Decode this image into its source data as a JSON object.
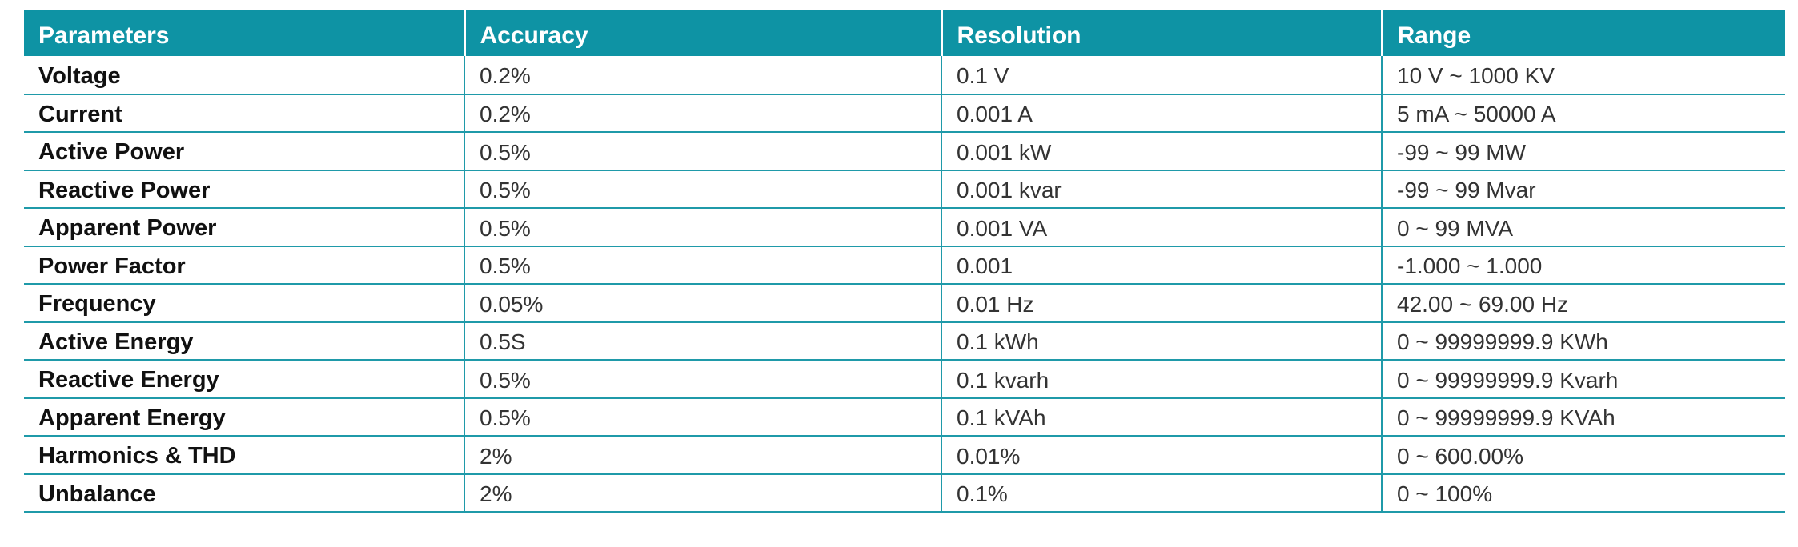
{
  "table": {
    "headers": [
      "Parameters",
      "Accuracy",
      "Resolution",
      "Range"
    ],
    "rows": [
      {
        "parameter": "Voltage",
        "accuracy": "0.2%",
        "resolution": "0.1 V",
        "range": "10 V ~ 1000 KV"
      },
      {
        "parameter": "Current",
        "accuracy": "0.2%",
        "resolution": "0.001 A",
        "range": "5 mA ~ 50000 A"
      },
      {
        "parameter": "Active Power",
        "accuracy": "0.5%",
        "resolution": "0.001 kW",
        "range": "-99 ~ 99 MW"
      },
      {
        "parameter": "Reactive Power",
        "accuracy": "0.5%",
        "resolution": "0.001 kvar",
        "range": "-99 ~ 99 Mvar"
      },
      {
        "parameter": "Apparent Power",
        "accuracy": "0.5%",
        "resolution": "0.001 VA",
        "range": "0 ~ 99 MVA"
      },
      {
        "parameter": "Power Factor",
        "accuracy": "0.5%",
        "resolution": "0.001",
        "range": "-1.000 ~ 1.000"
      },
      {
        "parameter": "Frequency",
        "accuracy": "0.05%",
        "resolution": "0.01 Hz",
        "range": "42.00 ~ 69.00 Hz"
      },
      {
        "parameter": "Active Energy",
        "accuracy": "0.5S",
        "resolution": "0.1 kWh",
        "range": "0 ~ 99999999.9 KWh"
      },
      {
        "parameter": "Reactive Energy",
        "accuracy": "0.5%",
        "resolution": "0.1 kvarh",
        "range": "0 ~ 99999999.9 Kvarh"
      },
      {
        "parameter": "Apparent Energy",
        "accuracy": "0.5%",
        "resolution": "0.1 kVAh",
        "range": "0 ~ 99999999.9 KVAh"
      },
      {
        "parameter": "Harmonics & THD",
        "accuracy": "2%",
        "resolution": "0.01%",
        "range": "0 ~ 600.00%"
      },
      {
        "parameter": "Unbalance",
        "accuracy": "2%",
        "resolution": "0.1%",
        "range": "0 ~ 100%"
      }
    ]
  },
  "colors": {
    "header_background": "#0e93a4",
    "header_text": "#ffffff",
    "row_rule": "#1f9aa9"
  }
}
